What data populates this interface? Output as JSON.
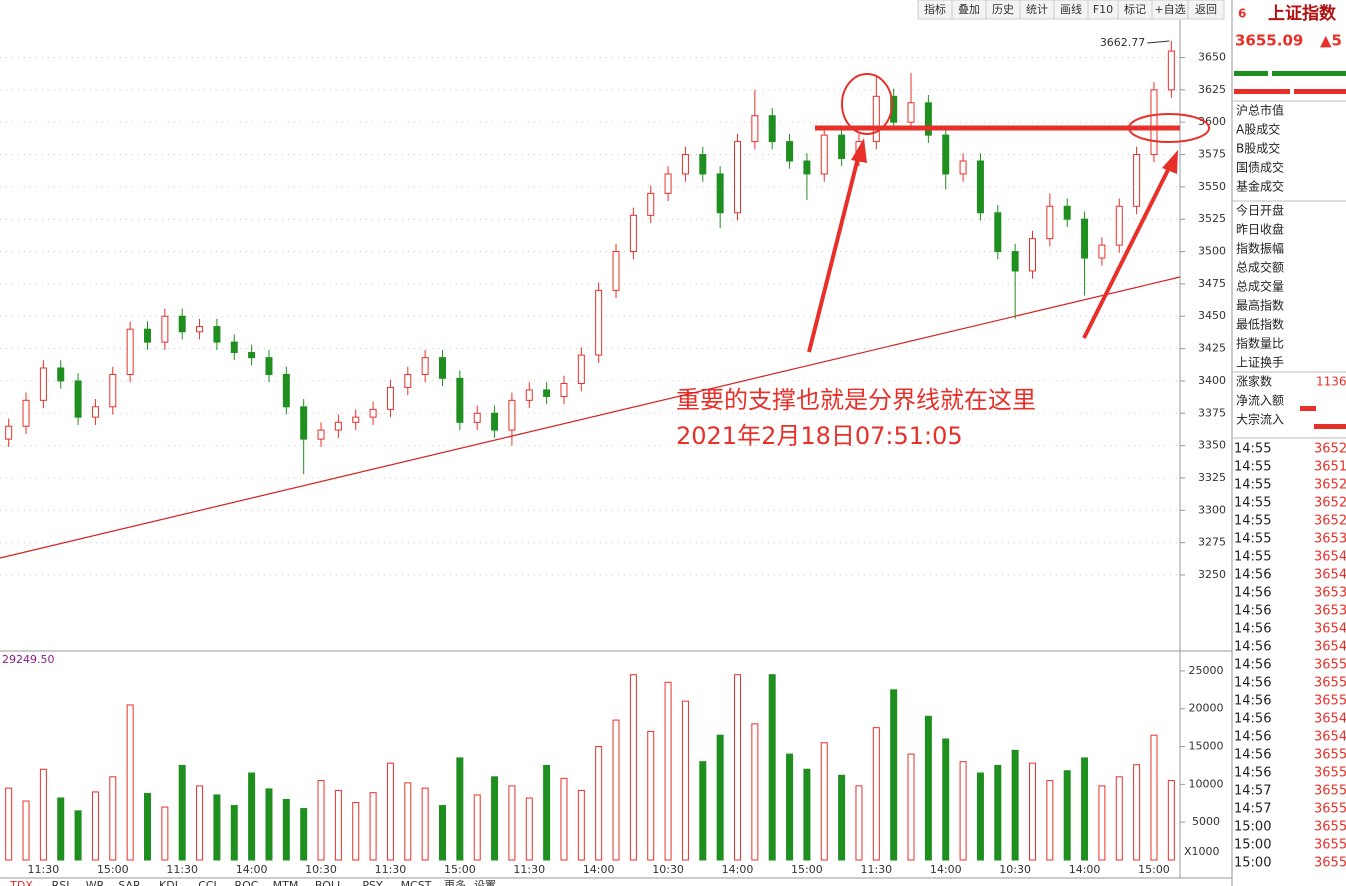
{
  "toolbar": {
    "buttons": [
      "指标",
      "叠加",
      "历史",
      "统计",
      "画线",
      "F10",
      "标记",
      "+自选",
      "返回"
    ]
  },
  "chart_data": [
    {
      "type": "candlestick",
      "up_color": "#e8302a",
      "down_color": "#1f8f1f",
      "grid": true,
      "ylim": [
        3192,
        3679
      ],
      "yticks": [
        3250,
        3275,
        3300,
        3325,
        3350,
        3375,
        3400,
        3425,
        3450,
        3475,
        3500,
        3525,
        3550,
        3575,
        3600,
        3625,
        3650
      ],
      "categories": [
        null,
        null,
        "11:30",
        null,
        null,
        null,
        "15:00",
        null,
        null,
        null,
        "11:30",
        null,
        null,
        null,
        "14:00",
        null,
        null,
        null,
        "10:30",
        null,
        null,
        null,
        "11:30",
        null,
        null,
        null,
        "15:00",
        null,
        null,
        null,
        "11:30",
        null,
        null,
        null,
        "14:00",
        null,
        null,
        null,
        "10:30",
        null,
        null,
        null,
        "14:00",
        null,
        null,
        null,
        "15:00",
        null,
        null,
        null,
        "11:30",
        null,
        null,
        null,
        "14:00",
        null,
        null,
        null,
        "10:30",
        null,
        null,
        null,
        "14:00",
        null,
        null,
        null,
        "15:00",
        null
      ],
      "open": [
        3355,
        3365,
        3385,
        3410,
        3400,
        3372,
        3380,
        3405,
        3440,
        3430,
        3450,
        3438,
        3442,
        3430,
        3422,
        3418,
        3405,
        3380,
        3355,
        3362,
        3368,
        3372,
        3378,
        3395,
        3405,
        3418,
        3402,
        3368,
        3375,
        3362,
        3385,
        3393,
        3388,
        3398,
        3420,
        3470,
        3500,
        3528,
        3545,
        3560,
        3575,
        3560,
        3530,
        3585,
        3605,
        3585,
        3570,
        3560,
        3590,
        3572,
        3585,
        3620,
        3600,
        3615,
        3590,
        3560,
        3570,
        3530,
        3500,
        3485,
        3510,
        3535,
        3525,
        3495,
        3505,
        3535,
        3575,
        3625
      ],
      "high": [
        3371,
        3391,
        3416,
        3416,
        3406,
        3386,
        3411,
        3446,
        3446,
        3456,
        3456,
        3448,
        3448,
        3436,
        3428,
        3424,
        3411,
        3386,
        3368,
        3374,
        3378,
        3384,
        3401,
        3411,
        3424,
        3424,
        3408,
        3381,
        3381,
        3391,
        3399,
        3399,
        3404,
        3426,
        3476,
        3506,
        3534,
        3551,
        3566,
        3581,
        3581,
        3566,
        3591,
        3625,
        3611,
        3591,
        3576,
        3596,
        3596,
        3591,
        3635,
        3626,
        3638,
        3621,
        3596,
        3576,
        3576,
        3536,
        3506,
        3516,
        3545,
        3541,
        3531,
        3511,
        3541,
        3581,
        3631,
        3662.77
      ],
      "low": [
        3349,
        3359,
        3379,
        3394,
        3366,
        3366,
        3374,
        3399,
        3424,
        3424,
        3432,
        3432,
        3424,
        3416,
        3412,
        3399,
        3374,
        3328,
        3349,
        3356,
        3362,
        3366,
        3372,
        3389,
        3399,
        3396,
        3362,
        3362,
        3356,
        3350,
        3379,
        3382,
        3382,
        3392,
        3414,
        3464,
        3494,
        3522,
        3539,
        3554,
        3554,
        3518,
        3524,
        3579,
        3579,
        3564,
        3540,
        3554,
        3566,
        3566,
        3579,
        3594,
        3594,
        3584,
        3548,
        3554,
        3524,
        3494,
        3448,
        3479,
        3504,
        3519,
        3466,
        3489,
        3499,
        3529,
        3569,
        3619
      ],
      "close": [
        3365,
        3385,
        3410,
        3400,
        3372,
        3380,
        3405,
        3440,
        3430,
        3450,
        3438,
        3442,
        3430,
        3422,
        3418,
        3405,
        3380,
        3355,
        3362,
        3368,
        3372,
        3378,
        3395,
        3405,
        3418,
        3402,
        3368,
        3375,
        3362,
        3385,
        3393,
        3388,
        3398,
        3420,
        3470,
        3500,
        3528,
        3545,
        3560,
        3575,
        3560,
        3530,
        3585,
        3605,
        3585,
        3570,
        3560,
        3590,
        3572,
        3585,
        3620,
        3600,
        3615,
        3590,
        3560,
        3570,
        3530,
        3500,
        3485,
        3510,
        3535,
        3525,
        3495,
        3505,
        3535,
        3575,
        3625,
        3655
      ]
    },
    {
      "type": "bar",
      "header_value": "29249.50",
      "unit_label": "X1000",
      "ylim": [
        0,
        27500
      ],
      "yticks": [
        5000,
        10000,
        15000,
        20000,
        25000
      ],
      "values": [
        9500,
        7800,
        12000,
        8200,
        6500,
        9000,
        11000,
        20500,
        8800,
        7000,
        12500,
        9800,
        8600,
        7200,
        11500,
        9400,
        8000,
        6800,
        10500,
        9200,
        7600,
        8900,
        12800,
        10200,
        9500,
        7200,
        13500,
        8600,
        11000,
        9800,
        8200,
        12500,
        10800,
        9200,
        15000,
        18500,
        24500,
        17000,
        23500,
        21000,
        13000,
        16500,
        24500,
        18000,
        24500,
        14000,
        12000,
        15500,
        11200,
        9800,
        17500,
        22500,
        14000,
        19000,
        16000,
        13000,
        11500,
        12500,
        14500,
        12800,
        10500,
        11800,
        13500,
        9800,
        11000,
        12600,
        16500,
        10500
      ]
    }
  ],
  "annotation": {
    "lines": [
      "重要的支撑也就是分界线就在这里",
      "2021年2月18日07:51:05"
    ]
  },
  "indicator_tabs": [
    "TDX",
    "RSI",
    "WR",
    "SAR",
    "KDJ",
    "CCI",
    "ROC",
    "MTM",
    "BOLL",
    "PSY",
    "MCST",
    "更多",
    "设置"
  ],
  "quote_panel": {
    "code_tag": "6",
    "name": "上证指数",
    "price": 3655.09,
    "change": "▲5",
    "fields": [
      "沪总市值",
      "A股成交",
      "B股成交",
      "国债成交",
      "基金成交",
      "今日开盘",
      "昨日收盘",
      "指数振幅",
      "总成交额",
      "总成交量",
      "最高指数",
      "最低指数",
      "指数量比",
      "上证换手",
      "涨家数",
      "净流入额",
      "大宗流入"
    ],
    "advancers": 1136,
    "ticks": {
      "times": [
        "14:55",
        "14:55",
        "14:55",
        "14:55",
        "14:55",
        "14:55",
        "14:55",
        "14:56",
        "14:56",
        "14:56",
        "14:56",
        "14:56",
        "14:56",
        "14:56",
        "14:56",
        "14:56",
        "14:56",
        "14:56",
        "14:56",
        "14:57",
        "14:57",
        "15:00",
        "15:00",
        "15:00"
      ],
      "prices": [
        3652,
        3651,
        3652,
        3652,
        3652,
        3653,
        3654,
        3654,
        3653,
        3653,
        3654,
        3654,
        3655,
        3655,
        3655,
        3654,
        3654,
        3655,
        3655,
        3655,
        3655,
        3655,
        3655,
        3655
      ]
    }
  }
}
